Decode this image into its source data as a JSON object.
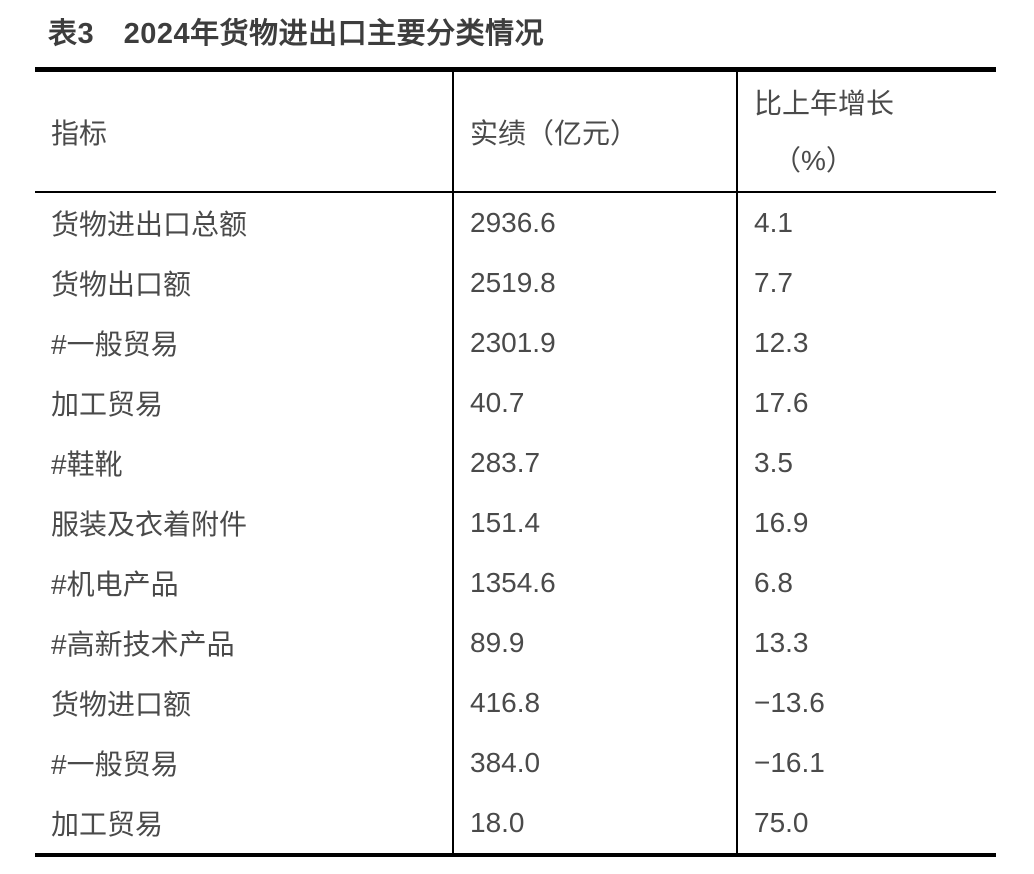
{
  "page": {
    "title": "表3　2024年货物进出口主要分类情况"
  },
  "table": {
    "columns": {
      "indicator_label": "指标",
      "value_label": "实绩（亿元）",
      "growth_label_line1": "比上年增长",
      "growth_label_line2": "（%）"
    },
    "rows": [
      {
        "indicator": "货物进出口总额",
        "value": "2936.6",
        "growth": "4.1"
      },
      {
        "indicator": "货物出口额",
        "value": "2519.8",
        "growth": "7.7"
      },
      {
        "indicator": "#一般贸易",
        "value": "2301.9",
        "growth": "12.3"
      },
      {
        "indicator": "加工贸易",
        "value": "40.7",
        "growth": "17.6"
      },
      {
        "indicator": "#鞋靴",
        "value": "283.7",
        "growth": "3.5"
      },
      {
        "indicator": "服装及衣着附件",
        "value": "151.4",
        "growth": "16.9"
      },
      {
        "indicator": "#机电产品",
        "value": "1354.6",
        "growth": "6.8"
      },
      {
        "indicator": "#高新技术产品",
        "value": "89.9",
        "growth": "13.3"
      },
      {
        "indicator": "货物进口额",
        "value": "416.8",
        "growth": "−13.6"
      },
      {
        "indicator": "#一般贸易",
        "value": "384.0",
        "growth": "−16.1"
      },
      {
        "indicator": "加工贸易",
        "value": "18.0",
        "growth": "75.0"
      }
    ]
  },
  "chart_data": {
    "type": "table",
    "title": "表3　2024年货物进出口主要分类情况",
    "columns": [
      "指标",
      "实绩（亿元）",
      "比上年增长（%）"
    ],
    "categories": [
      "货物进出口总额",
      "货物出口额",
      "#一般贸易",
      "加工贸易",
      "#鞋靴",
      "服装及衣着附件",
      "#机电产品",
      "#高新技术产品",
      "货物进口额",
      "#一般贸易",
      "加工贸易"
    ],
    "series": [
      {
        "name": "实绩（亿元）",
        "values": [
          2936.6,
          2519.8,
          2301.9,
          40.7,
          283.7,
          151.4,
          1354.6,
          89.9,
          416.8,
          384.0,
          18.0
        ]
      },
      {
        "name": "比上年增长（%）",
        "values": [
          4.1,
          7.7,
          12.3,
          17.6,
          3.5,
          16.9,
          6.8,
          13.3,
          -13.6,
          -16.1,
          75.0
        ]
      }
    ]
  },
  "colors": {
    "background": "#ffffff",
    "border": "#000000",
    "body_text": "#4a4a4a",
    "title_text": "#3d3d3d"
  }
}
